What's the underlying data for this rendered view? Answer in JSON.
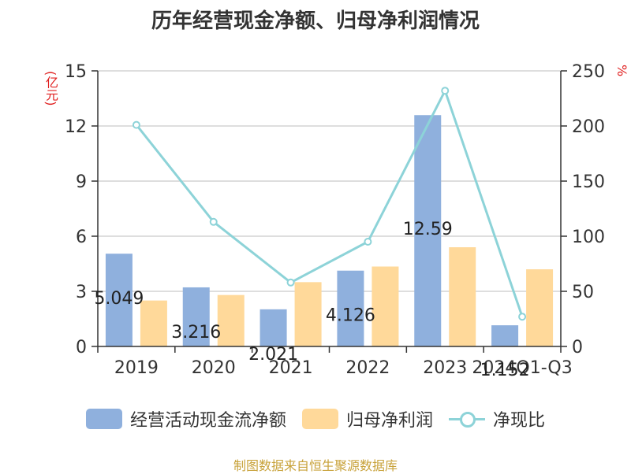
{
  "title": "历年经营现金净额、归母净利润情况",
  "source": "制图数据来自恒生聚源数据库",
  "colors": {
    "cash_flow": "#8fb0dd",
    "net_profit": "#ffd99a",
    "ratio": "#8dd3d8",
    "unit": "#e02020",
    "source": "#c8a23a"
  },
  "chart_data": {
    "type": "bar",
    "title": "历年经营现金净额、归母净利润情况",
    "categories": [
      "2019",
      "2020",
      "2021",
      "2022",
      "2023",
      "2024Q1-Q3"
    ],
    "y_left": {
      "label": "(亿元)",
      "ylim": [
        0,
        15
      ],
      "ticks": [
        0,
        3,
        6,
        9,
        12,
        15
      ]
    },
    "y_right": {
      "label": "%",
      "ylim": [
        0,
        250
      ],
      "ticks": [
        0,
        50,
        100,
        150,
        200,
        250
      ]
    },
    "grid": true,
    "legend_position": "bottom",
    "series": [
      {
        "name": "经营活动现金流净额",
        "type": "bar",
        "axis": "left",
        "values": [
          5.049,
          3.216,
          2.021,
          4.126,
          12.59,
          1.152
        ],
        "labels": [
          "5.049",
          "3.216",
          "2.021",
          "4.126",
          "12.59",
          "1.152"
        ]
      },
      {
        "name": "归母净利润",
        "type": "bar",
        "axis": "left",
        "values": [
          2.5,
          2.8,
          3.5,
          4.35,
          5.4,
          4.2
        ]
      },
      {
        "name": "净现比",
        "type": "line",
        "axis": "right",
        "values": [
          201,
          113,
          58,
          95,
          232,
          27
        ]
      }
    ]
  }
}
